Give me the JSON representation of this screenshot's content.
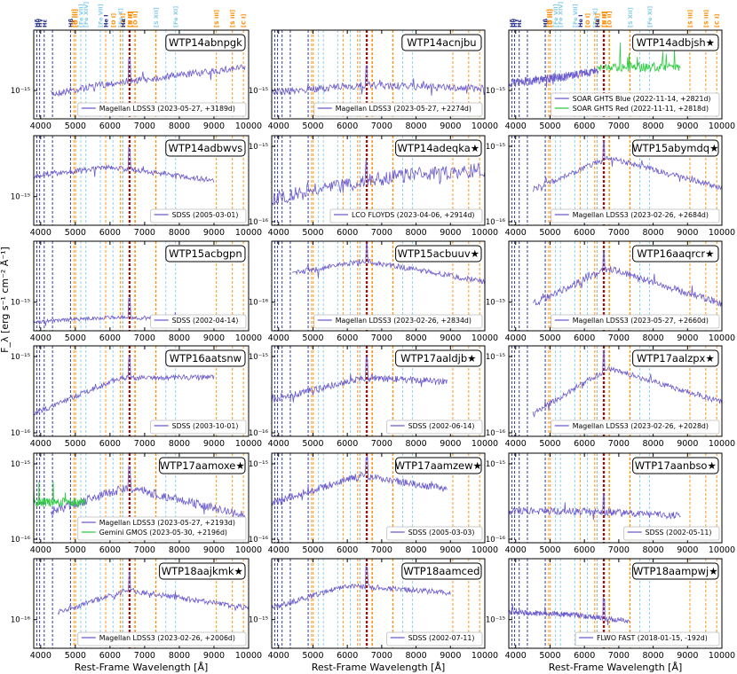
{
  "figure": {
    "xlabel": "Rest-Frame Wavelength [Å]",
    "ylabel": "F_λ [erg s⁻¹ cm⁻² Å⁻¹]",
    "colors": {
      "primary_spectrum": "#6a5acd",
      "secondary_spectrum": "#2ecc40",
      "balmer_lines": "#1f2a8a",
      "forbidden_lines": "#ff8c00",
      "iron_lines": "#87ceeb",
      "halpha_nii": "#8b0000"
    }
  },
  "line_labels": [
    "Hδ",
    "Hγ",
    "Hε",
    "Hβ",
    "[O III]",
    "[O III]",
    "[Fe VII]",
    "[Fe XIV]",
    "[Fe VII]",
    "He I",
    "[O I]",
    "[Fe X]",
    "[O I]",
    "Hα",
    "[N II]",
    "[S II]",
    "[O II]",
    "[S XII]",
    "[Fe XI]",
    "[S III]",
    "[S III]",
    "[C I]"
  ],
  "chart_data": {
    "type": "line",
    "xlim": [
      3800,
      10000
    ],
    "xticks": [
      4000,
      5000,
      6000,
      7000,
      8000,
      9000,
      10000
    ],
    "panels": [
      {
        "name": "WTP14abnpgk",
        "star": false,
        "yticks": [
          "10⁻¹⁵"
        ],
        "legend": [
          {
            "label": "Magellan LDSS3 (2023-05-27, +3189d)",
            "color": "#6a5acd"
          }
        ]
      },
      {
        "name": "WTP14acnjbu",
        "star": false,
        "yticks": [
          "10⁻¹⁵"
        ],
        "legend": [
          {
            "label": "Magellan LDSS3 (2023-05-27, +2274d)",
            "color": "#6a5acd"
          }
        ]
      },
      {
        "name": "WTP14adbjsh",
        "star": true,
        "yticks": [
          "10⁻¹⁵"
        ],
        "legend": [
          {
            "label": "SOAR GHTS Blue (2022-11-14, +2821d)",
            "color": "#6a5acd"
          },
          {
            "label": "SOAR GHTS Red (2022-11-11, +2818d)",
            "color": "#2ecc40"
          }
        ]
      },
      {
        "name": "WTP14adbwvs",
        "star": false,
        "yticks": [
          "10⁻¹⁵"
        ],
        "legend": [
          {
            "label": "SDSS (2005-03-01)",
            "color": "#6a5acd"
          }
        ]
      },
      {
        "name": "WTP14adeqka",
        "star": true,
        "yticks": [
          "10⁻¹⁵",
          "10⁻¹⁶"
        ],
        "legend": [
          {
            "label": "LCO FLOYDS (2023-04-06, +2914d)",
            "color": "#6a5acd"
          }
        ]
      },
      {
        "name": "WTP15abymdq",
        "star": true,
        "yticks": [
          "10⁻¹⁵",
          "10⁻¹⁶"
        ],
        "legend": [
          {
            "label": "Magellan LDSS3 (2023-02-26, +2684d)",
            "color": "#6a5acd"
          }
        ]
      },
      {
        "name": "WTP15acbgpn",
        "star": false,
        "yticks": [
          "10⁻¹⁵"
        ],
        "legend": [
          {
            "label": "SDSS (2002-04-14)",
            "color": "#6a5acd"
          }
        ]
      },
      {
        "name": "WTP15acbuuv",
        "star": true,
        "yticks": [
          "10⁻¹⁶"
        ],
        "legend": [
          {
            "label": "Magellan LDSS3 (2023-02-26, +2834d)",
            "color": "#6a5acd"
          }
        ]
      },
      {
        "name": "WTP16aaqrcr",
        "star": true,
        "yticks": [
          "10⁻¹⁵"
        ],
        "legend": [
          {
            "label": "Magellan LDSS3 (2023-05-27, +2660d)",
            "color": "#6a5acd"
          }
        ]
      },
      {
        "name": "WTP16aatsnw",
        "star": false,
        "yticks": [
          "10⁻¹⁵",
          "10⁻¹⁶"
        ],
        "legend": [
          {
            "label": "SDSS (2003-10-01)",
            "color": "#6a5acd"
          }
        ]
      },
      {
        "name": "WTP17aaldjb",
        "star": true,
        "yticks": [
          "10⁻¹⁵",
          "10⁻¹⁶"
        ],
        "legend": [
          {
            "label": "SDSS (2002-06-14)",
            "color": "#6a5acd"
          }
        ]
      },
      {
        "name": "WTP17aalzpx",
        "star": true,
        "yticks": [
          "10⁻¹⁵",
          "10⁻¹⁶"
        ],
        "legend": [
          {
            "label": "Magellan LDSS3 (2023-02-26, +2028d)",
            "color": "#6a5acd"
          }
        ]
      },
      {
        "name": "WTP17aamoxe",
        "star": true,
        "yticks": [
          "10⁻¹⁵",
          "10⁻¹⁶"
        ],
        "legend": [
          {
            "label": "Magellan LDSS3 (2023-05-27, +2193d)",
            "color": "#6a5acd"
          },
          {
            "label": "Gemini GMOS (2023-05-30, +2196d)",
            "color": "#2ecc40"
          }
        ]
      },
      {
        "name": "WTP17aamzew",
        "star": true,
        "yticks": [
          "10⁻¹⁵",
          "10⁻¹⁶"
        ],
        "legend": [
          {
            "label": "SDSS (2005-03-03)",
            "color": "#6a5acd"
          }
        ]
      },
      {
        "name": "WTP17aanbso",
        "star": true,
        "yticks": [
          "10⁻¹⁵",
          "10⁻¹⁶"
        ],
        "legend": [
          {
            "label": "SDSS (2002-05-11)",
            "color": "#6a5acd"
          }
        ]
      },
      {
        "name": "WTP18aajkmk",
        "star": true,
        "yticks": [
          "10⁻¹⁶"
        ],
        "legend": [
          {
            "label": "Magellan LDSS3 (2023-02-26, +2006d)",
            "color": "#6a5acd"
          }
        ]
      },
      {
        "name": "WTP18aamced",
        "star": false,
        "yticks": [
          "10⁻¹⁵"
        ],
        "legend": [
          {
            "label": "SDSS (2002-07-11)",
            "color": "#6a5acd"
          }
        ]
      },
      {
        "name": "WTP18aampwj",
        "star": true,
        "yticks": [
          "10⁻¹⁵"
        ],
        "legend": [
          {
            "label": "FLWO FAST (2018-01-15, -192d)",
            "color": "#6a5acd"
          }
        ]
      }
    ]
  }
}
